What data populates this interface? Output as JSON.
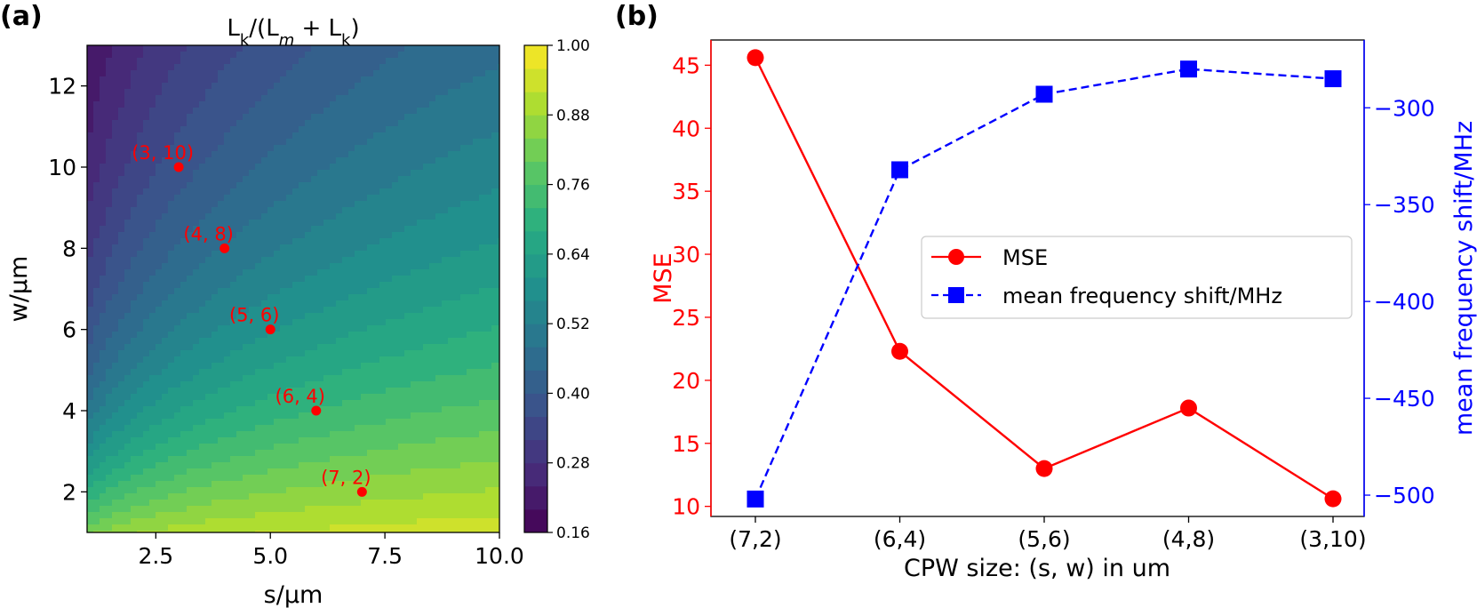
{
  "chart_data": [
    {
      "panel": "(a)",
      "type": "heatmap",
      "title_main": "L",
      "title_parts": [
        "L",
        "k",
        "/(L",
        "m",
        " + L",
        "k",
        ")"
      ],
      "xlabel": "s/μm",
      "ylabel": "w/μm",
      "xlim": [
        1,
        10
      ],
      "ylim": [
        1,
        13
      ],
      "xticks": [
        2.5,
        5.0,
        7.5,
        10.0
      ],
      "xtick_labels": [
        "2.5",
        "5.0",
        "7.5",
        "10.0"
      ],
      "yticks": [
        2,
        4,
        6,
        8,
        10,
        12
      ],
      "ytick_labels": [
        "2",
        "4",
        "6",
        "8",
        "10",
        "12"
      ],
      "colorbar": {
        "range": [
          0.16,
          1.0
        ],
        "ticks": [
          0.16,
          0.28,
          0.4,
          0.52,
          0.64,
          0.76,
          0.88,
          1.0
        ],
        "tick_labels": [
          "0.16",
          "0.28",
          "0.40",
          "0.52",
          "0.64",
          "0.76",
          "0.88",
          "1.00"
        ],
        "colormap": "viridis"
      },
      "points": [
        {
          "s": 3,
          "w": 10,
          "label": "(3, 10)"
        },
        {
          "s": 4,
          "w": 8,
          "label": "(4, 8)"
        },
        {
          "s": 5,
          "w": 6,
          "label": "(5, 6)"
        },
        {
          "s": 6,
          "w": 4,
          "label": "(6, 4)"
        },
        {
          "s": 7,
          "w": 2,
          "label": "(7, 2)"
        }
      ],
      "point_color": "#ff0000"
    },
    {
      "panel": "(b)",
      "type": "line",
      "xlabel": "CPW size: (s, w) in um",
      "ylabel_left": "MSE",
      "ylabel_right": "mean frequency shift/MHz",
      "categories": [
        "(7,2)",
        "(6,4)",
        "(5,6)",
        "(4,8)",
        "(3,10)"
      ],
      "ylim_left": [
        9.2,
        47
      ],
      "yticks_left": [
        10,
        15,
        20,
        25,
        30,
        35,
        40,
        45
      ],
      "ytick_labels_left": [
        "10",
        "15",
        "20",
        "25",
        "30",
        "35",
        "40",
        "45"
      ],
      "ylim_right": [
        -511,
        -265
      ],
      "yticks_right": [
        -500,
        -450,
        -400,
        -350,
        -300
      ],
      "ytick_labels_right": [
        "−500",
        "−450",
        "−400",
        "−350",
        "−300"
      ],
      "series": [
        {
          "name": "MSE",
          "axis": "left",
          "values": [
            45.6,
            22.3,
            13.0,
            17.8,
            10.6
          ],
          "color": "#ff0000",
          "marker": "circle",
          "line": "solid"
        },
        {
          "name": "mean frequency shift/MHz",
          "axis": "right",
          "values": [
            -502,
            -332,
            -293,
            -280,
            -285
          ],
          "color": "#0000ff",
          "marker": "square",
          "line": "dashed"
        }
      ],
      "legend_position": "center-right"
    }
  ]
}
